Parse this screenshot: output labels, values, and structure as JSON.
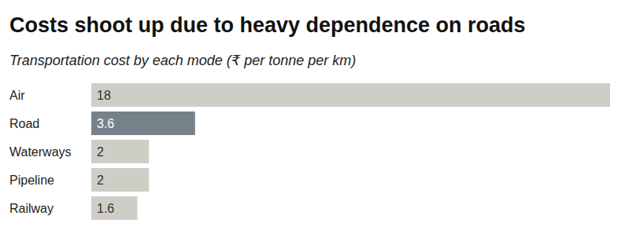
{
  "chart_data": {
    "type": "bar",
    "orientation": "horizontal",
    "title": "Costs shoot up due to heavy dependence on roads",
    "subtitle": "Transportation cost by each mode (₹ per tonne per km)",
    "categories": [
      "Air",
      "Road",
      "Waterways",
      "Pipeline",
      "Railway"
    ],
    "values": [
      18,
      3.6,
      2,
      2,
      1.6
    ],
    "colors": [
      "#cfcec6",
      "#76828a",
      "#cfcec6",
      "#cfcec6",
      "#cfcec6"
    ],
    "xlim": [
      0,
      18
    ],
    "data_labels": true,
    "tick_labels": "y",
    "grid": false
  }
}
